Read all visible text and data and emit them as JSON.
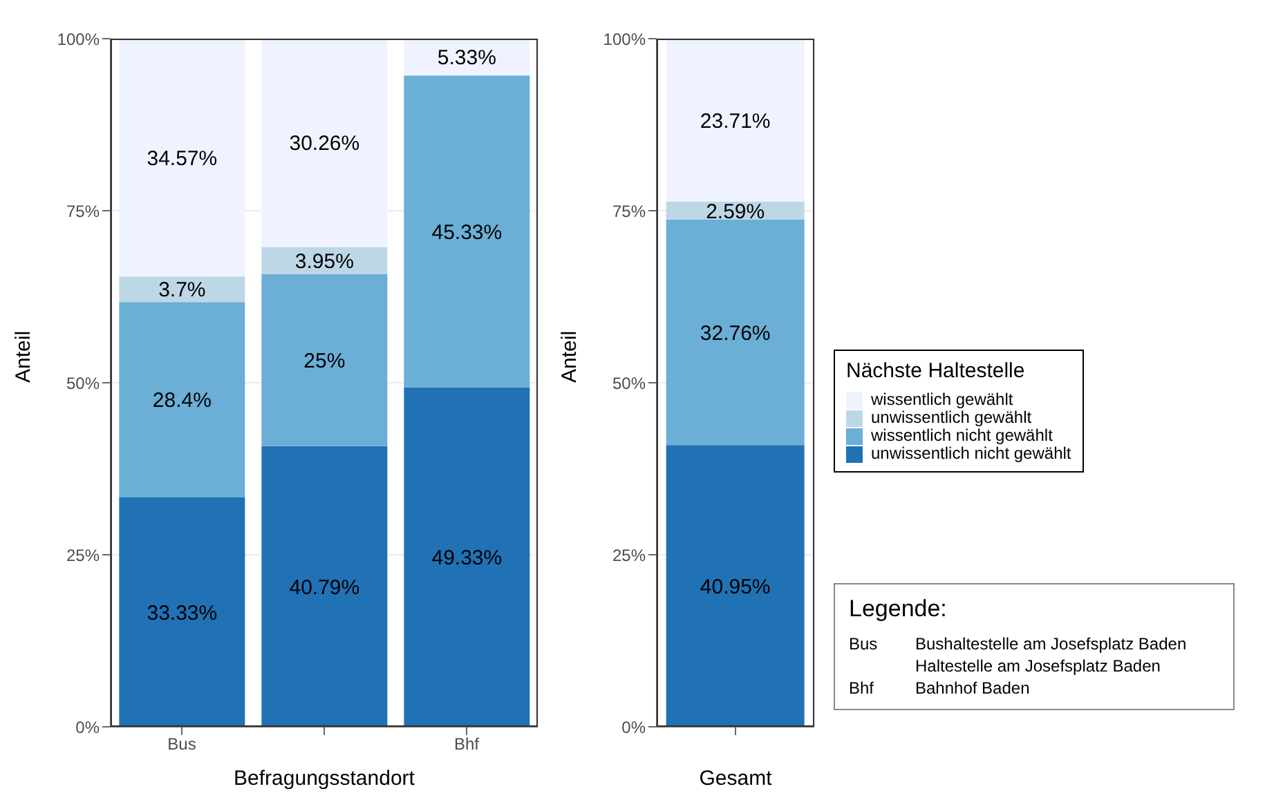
{
  "chart_data": [
    {
      "type": "bar",
      "stacked": true,
      "categories": [
        "Bus",
        null,
        "Bhf"
      ],
      "xlabel": "Befragungsstandort",
      "ylabel": "Anteil",
      "ylim": [
        0,
        100
      ],
      "yticks": [
        {
          "value": 0,
          "label": "0%"
        },
        {
          "value": 25,
          "label": "25%"
        },
        {
          "value": 50,
          "label": "50%"
        },
        {
          "value": 75,
          "label": "75%"
        },
        {
          "value": 100,
          "label": "100%"
        }
      ],
      "grid": true,
      "legend": "right",
      "legend_title": "Nächste Haltestelle",
      "series": [
        {
          "name": "unwissentlich nicht gewählt",
          "color": "#2171b5",
          "values": [
            33.33,
            40.79,
            49.33
          ],
          "value_labels": [
            "33.33%",
            "40.79%",
            "49.33%"
          ]
        },
        {
          "name": "wissentlich nicht gewählt",
          "color": "#6baed6",
          "values": [
            28.4,
            25,
            45.33
          ],
          "value_labels": [
            "28.4%",
            "25%",
            "45.33%"
          ]
        },
        {
          "name": "unwissentlich gewählt",
          "color": "#bdd7e7",
          "values": [
            3.7,
            3.95,
            null
          ],
          "value_labels": [
            "3.7%",
            "3.95%",
            null
          ]
        },
        {
          "name": "wissentlich gewählt",
          "color": "#eff3ff",
          "values": [
            34.57,
            30.26,
            5.33
          ],
          "value_labels": [
            "34.57%",
            "30.26%",
            "5.33%"
          ]
        }
      ]
    },
    {
      "type": "bar",
      "stacked": true,
      "categories": [
        null
      ],
      "xlabel": "Gesamt",
      "ylabel": "Anteil",
      "ylim": [
        0,
        100
      ],
      "yticks": [
        {
          "value": 0,
          "label": "0%"
        },
        {
          "value": 25,
          "label": "25%"
        },
        {
          "value": 50,
          "label": "50%"
        },
        {
          "value": 75,
          "label": "75%"
        },
        {
          "value": 100,
          "label": "100%"
        }
      ],
      "grid": true,
      "series": [
        {
          "color": "#2171b5",
          "values": [
            40.95
          ],
          "value_labels": [
            "40.95%"
          ]
        },
        {
          "color": "#6baed6",
          "values": [
            32.76
          ],
          "value_labels": [
            "32.76%"
          ]
        },
        {
          "color": "#bdd7e7",
          "values": [
            2.59
          ],
          "value_labels": [
            "2.59%"
          ]
        },
        {
          "color": "#eff3ff",
          "values": [
            23.71
          ],
          "value_labels": [
            "23.71%"
          ]
        }
      ]
    },
    {
      "type": "other",
      "title": "Legende:",
      "categories": [
        "Bus",
        null,
        "Bhf"
      ],
      "annotations": [
        "Bushaltestelle am Josefsplatz Baden",
        "Haltestelle am Josefsplatz Baden",
        "Bahnhof Baden"
      ]
    }
  ]
}
